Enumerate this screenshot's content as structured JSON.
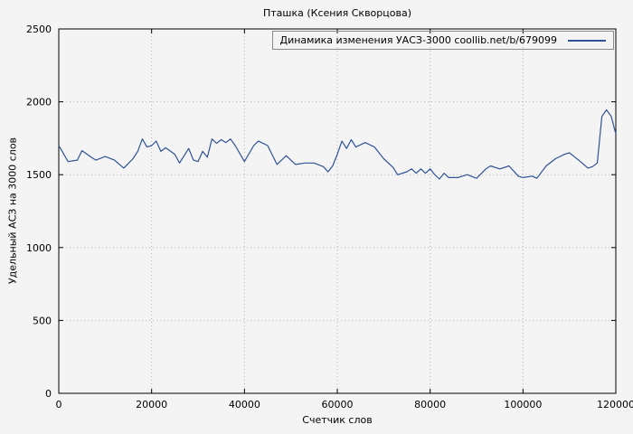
{
  "chart_data": {
    "type": "line",
    "title": "Пташка (Ксения Скворцова)",
    "xlabel": "Счетчик слов",
    "ylabel": "Удельный АСЗ на 3000 слов",
    "xlim": [
      0,
      120000
    ],
    "ylim": [
      0,
      2500
    ],
    "xticks": [
      0,
      20000,
      40000,
      60000,
      80000,
      100000,
      120000
    ],
    "yticks": [
      0,
      500,
      1000,
      1500,
      2000,
      2500
    ],
    "grid": "dotted",
    "grid_color": "#b4b4b4",
    "line_color": "#2f5394",
    "background": "#f4f4f4",
    "legend_position": "top-right-inside",
    "series": [
      {
        "name": "Динамика изменения УАСЗ-3000 coollib.net/b/679099",
        "x": [
          0,
          2000,
          4000,
          5000,
          7000,
          8000,
          10000,
          12000,
          14000,
          16000,
          17000,
          18000,
          19000,
          20000,
          21000,
          22000,
          23000,
          25000,
          26000,
          28000,
          29000,
          30000,
          31000,
          32000,
          33000,
          34000,
          35000,
          36000,
          37000,
          38000,
          40000,
          42000,
          43000,
          45000,
          47000,
          49000,
          51000,
          53000,
          55000,
          57000,
          58000,
          59000,
          60000,
          61000,
          62000,
          63000,
          64000,
          66000,
          68000,
          70000,
          72000,
          73000,
          75000,
          76000,
          77000,
          78000,
          79000,
          80000,
          81000,
          82000,
          83000,
          84000,
          86000,
          88000,
          90000,
          92000,
          93000,
          95000,
          97000,
          99000,
          100000,
          102000,
          103000,
          105000,
          107000,
          109000,
          110000,
          112000,
          114000,
          115000,
          116000,
          117000,
          118000,
          119000,
          120000
        ],
        "y": [
          1700,
          1590,
          1600,
          1665,
          1620,
          1600,
          1625,
          1600,
          1545,
          1610,
          1660,
          1745,
          1690,
          1700,
          1730,
          1660,
          1685,
          1640,
          1580,
          1680,
          1600,
          1590,
          1660,
          1620,
          1745,
          1715,
          1740,
          1720,
          1745,
          1700,
          1590,
          1700,
          1730,
          1700,
          1570,
          1630,
          1570,
          1580,
          1580,
          1555,
          1520,
          1560,
          1640,
          1730,
          1680,
          1740,
          1690,
          1720,
          1690,
          1610,
          1550,
          1500,
          1520,
          1540,
          1510,
          1540,
          1510,
          1540,
          1500,
          1470,
          1510,
          1480,
          1480,
          1500,
          1475,
          1540,
          1560,
          1540,
          1560,
          1490,
          1480,
          1490,
          1475,
          1560,
          1610,
          1640,
          1650,
          1600,
          1545,
          1555,
          1580,
          1900,
          1945,
          1900,
          1780
        ]
      }
    ]
  }
}
